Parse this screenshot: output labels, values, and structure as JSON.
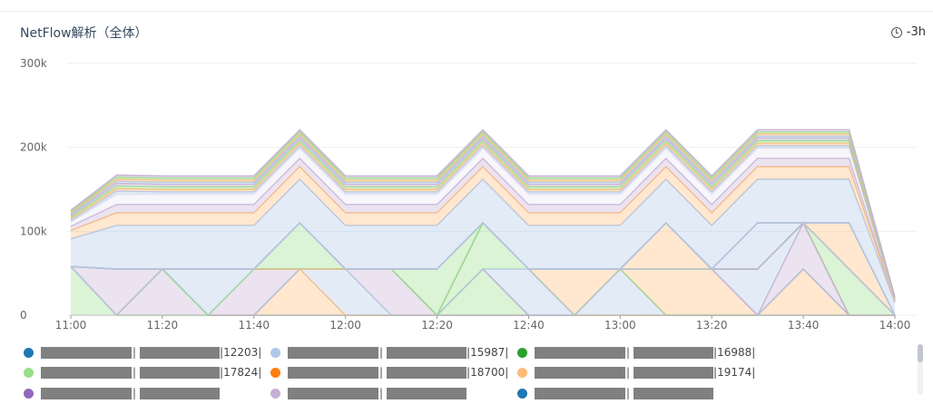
{
  "panel": {
    "title": "NetFlow解析（全体）",
    "time_range": "-3h",
    "icon": "clock-icon"
  },
  "legend": {
    "items": [
      {
        "id": "12203",
        "suffix": "|12203|",
        "color": "#1f77b4"
      },
      {
        "id": "15987",
        "suffix": "|15987|",
        "color": "#aec7e8"
      },
      {
        "id": "16988",
        "suffix": "|16988|",
        "color": "#2ca02c"
      },
      {
        "id": "17824",
        "suffix": "|17824|",
        "color": "#98df8a"
      },
      {
        "id": "18700",
        "suffix": "|18700|",
        "color": "#ff7f0e"
      },
      {
        "id": "19174",
        "suffix": "|19174|",
        "color": "#ffbb78"
      },
      {
        "id": "row3a",
        "suffix": "",
        "color": "#9467bd"
      },
      {
        "id": "row3b",
        "suffix": "",
        "color": "#c5b0d5"
      },
      {
        "id": "row3c",
        "suffix": "",
        "color": "#1f77b4"
      }
    ]
  },
  "chart_data": {
    "type": "area",
    "stacked": true,
    "x": [
      "11:00",
      "11:10",
      "11:20",
      "11:30",
      "11:40",
      "11:50",
      "12:00",
      "12:10",
      "12:20",
      "12:30",
      "12:40",
      "12:50",
      "13:00",
      "13:10",
      "13:20",
      "13:30",
      "13:40",
      "13:50",
      "14:00"
    ],
    "xticks": [
      "11:00",
      "11:20",
      "11:40",
      "12:00",
      "12:20",
      "12:40",
      "13:00",
      "13:20",
      "13:40",
      "14:00"
    ],
    "yticks": [
      "0",
      "100k",
      "200k",
      "300k"
    ],
    "ylim": [
      0,
      300000
    ],
    "grid": true,
    "legend_position": "bottom",
    "series": [
      {
        "color": "#98df8a",
        "values": [
          58000,
          0,
          0,
          0,
          0,
          0,
          0,
          0,
          0,
          0,
          0,
          0,
          0,
          0,
          0,
          0,
          0,
          0,
          0
        ]
      },
      {
        "color": "#c5b0d5",
        "values": [
          0,
          0,
          55000,
          0,
          0,
          0,
          0,
          0,
          0,
          0,
          0,
          0,
          0,
          0,
          0,
          0,
          0,
          0,
          0
        ]
      },
      {
        "color": "#ffbb78",
        "values": [
          0,
          0,
          0,
          0,
          0,
          55000,
          0,
          0,
          0,
          0,
          0,
          0,
          0,
          0,
          0,
          0,
          55000,
          0,
          0
        ]
      },
      {
        "color": "#aec7e8",
        "values": [
          0,
          0,
          0,
          0,
          0,
          0,
          55000,
          0,
          0,
          0,
          0,
          0,
          55000,
          0,
          0,
          0,
          0,
          0,
          0
        ]
      },
      {
        "color": "#c5b0d5",
        "values": [
          0,
          0,
          0,
          0,
          0,
          0,
          0,
          55000,
          0,
          0,
          0,
          0,
          0,
          0,
          0,
          0,
          0,
          0,
          0
        ]
      },
      {
        "color": "#98df8a",
        "values": [
          0,
          0,
          0,
          0,
          0,
          0,
          0,
          0,
          0,
          55000,
          0,
          0,
          0,
          0,
          0,
          0,
          0,
          0,
          0
        ]
      },
      {
        "color": "#ffbb78",
        "values": [
          0,
          0,
          0,
          0,
          0,
          0,
          0,
          0,
          0,
          0,
          0,
          0,
          0,
          55000,
          55000,
          0,
          0,
          0,
          0
        ]
      },
      {
        "color": "#aec7e8",
        "values": [
          0,
          0,
          0,
          0,
          0,
          0,
          0,
          0,
          0,
          0,
          0,
          0,
          0,
          0,
          0,
          0,
          0,
          0,
          0
        ]
      },
      {
        "color": "#c5b0d5",
        "values": [
          0,
          55000,
          0,
          0,
          55000,
          0,
          0,
          0,
          0,
          0,
          0,
          0,
          0,
          0,
          0,
          0,
          55000,
          0,
          0
        ]
      },
      {
        "color": "#aec7e8",
        "values": [
          0,
          0,
          0,
          0,
          0,
          0,
          0,
          0,
          0,
          0,
          55000,
          0,
          0,
          0,
          0,
          55000,
          0,
          0,
          0
        ]
      },
      {
        "color": "#98df8a",
        "values": [
          0,
          0,
          0,
          0,
          0,
          0,
          0,
          0,
          0,
          55000,
          0,
          0,
          0,
          0,
          0,
          0,
          0,
          0,
          0
        ]
      },
      {
        "color": "#aec7e8",
        "values": [
          0,
          0,
          0,
          55000,
          0,
          0,
          0,
          0,
          0,
          0,
          0,
          0,
          0,
          0,
          0,
          0,
          0,
          0,
          0
        ]
      },
      {
        "color": "#ffbb78",
        "values": [
          0,
          0,
          0,
          0,
          0,
          0,
          0,
          0,
          0,
          0,
          0,
          0,
          0,
          55000,
          0,
          0,
          0,
          0,
          0
        ]
      },
      {
        "color": "#c5b0d5",
        "values": [
          0,
          0,
          0,
          0,
          0,
          0,
          0,
          0,
          0,
          0,
          0,
          0,
          0,
          0,
          0,
          0,
          0,
          0,
          0
        ]
      },
      {
        "color": "#98df8a",
        "values": [
          0,
          0,
          0,
          0,
          0,
          0,
          0,
          0,
          0,
          0,
          0,
          0,
          0,
          0,
          0,
          0,
          0,
          55000,
          0
        ]
      },
      {
        "color": "#98df8a",
        "values": [
          0,
          0,
          0,
          0,
          0,
          0,
          0,
          0,
          55000,
          0,
          0,
          0,
          0,
          0,
          0,
          0,
          0,
          0,
          0
        ]
      },
      {
        "color": "#aec7e8",
        "values": [
          0,
          0,
          0,
          0,
          0,
          0,
          0,
          0,
          0,
          0,
          0,
          0,
          0,
          0,
          0,
          0,
          0,
          0,
          0
        ]
      },
      {
        "color": "#ffbb78",
        "values": [
          0,
          0,
          0,
          0,
          0,
          0,
          0,
          0,
          0,
          0,
          0,
          55000,
          0,
          0,
          0,
          0,
          0,
          0,
          0
        ]
      },
      {
        "color": "#98df8a",
        "values": [
          0,
          0,
          0,
          0,
          0,
          55000,
          0,
          0,
          0,
          0,
          0,
          0,
          0,
          0,
          0,
          0,
          0,
          0,
          0
        ]
      },
      {
        "color": "#c5b0d5",
        "values": [
          0,
          0,
          0,
          0,
          0,
          0,
          0,
          0,
          0,
          0,
          0,
          0,
          0,
          0,
          0,
          0,
          0,
          0,
          0
        ]
      },
      {
        "color": "#aec7e8",
        "values": [
          0,
          0,
          0,
          0,
          0,
          0,
          0,
          0,
          0,
          0,
          0,
          0,
          0,
          0,
          0,
          55000,
          0,
          0,
          0
        ]
      },
      {
        "color": "#ffbb78",
        "values": [
          0,
          0,
          0,
          0,
          0,
          0,
          0,
          0,
          0,
          0,
          0,
          0,
          0,
          0,
          0,
          0,
          0,
          55000,
          0
        ]
      },
      {
        "color": "#c5b0d5",
        "values": [
          0,
          0,
          0,
          0,
          0,
          0,
          0,
          0,
          0,
          0,
          0,
          0,
          0,
          0,
          0,
          0,
          0,
          0,
          0
        ]
      },
      {
        "color": "#98df8a",
        "values": [
          0,
          0,
          0,
          0,
          0,
          0,
          0,
          0,
          0,
          0,
          0,
          0,
          0,
          0,
          0,
          0,
          0,
          0,
          0
        ]
      },
      {
        "color": "#ffbb78",
        "values": [
          0,
          0,
          0,
          0,
          0,
          0,
          0,
          0,
          0,
          0,
          0,
          0,
          0,
          0,
          0,
          0,
          0,
          0,
          0
        ]
      },
      {
        "color": "#c5b0d5",
        "values": [
          0,
          0,
          0,
          0,
          0,
          0,
          0,
          0,
          0,
          0,
          0,
          0,
          0,
          0,
          0,
          0,
          0,
          0,
          0
        ]
      },
      {
        "color": "#aec7e8",
        "values": [
          0,
          0,
          0,
          0,
          0,
          0,
          0,
          0,
          0,
          0,
          0,
          0,
          0,
          0,
          0,
          0,
          0,
          0,
          0
        ]
      },
      {
        "color": "#aec7e8",
        "values": [
          33000,
          52000,
          52000,
          52000,
          52000,
          52000,
          52000,
          52000,
          52000,
          52000,
          52000,
          52000,
          52000,
          52000,
          52000,
          52000,
          52000,
          52000,
          15000
        ]
      },
      {
        "color": "#ffbb78",
        "values": [
          10000,
          15000,
          15000,
          15000,
          15000,
          15000,
          15000,
          15000,
          15000,
          15000,
          15000,
          15000,
          15000,
          15000,
          15000,
          15000,
          15000,
          15000,
          1000
        ]
      },
      {
        "color": "#c5b0d5",
        "values": [
          5000,
          10000,
          10000,
          10000,
          10000,
          10000,
          10000,
          10000,
          10000,
          10000,
          10000,
          10000,
          10000,
          10000,
          10000,
          10000,
          10000,
          10000,
          1000
        ]
      },
      {
        "color": "#e9e4f2",
        "values": [
          5000,
          12000,
          12000,
          12000,
          12000,
          12000,
          12000,
          12000,
          12000,
          12000,
          12000,
          12000,
          12000,
          12000,
          12000,
          12000,
          12000,
          12000,
          1000
        ]
      },
      {
        "color": "#aec7e8",
        "values": [
          2000,
          4000,
          3000,
          3000,
          3000,
          3000,
          3000,
          3000,
          3000,
          3000,
          3000,
          3000,
          3000,
          3000,
          3000,
          3000,
          3000,
          3000,
          500
        ]
      },
      {
        "color": "#ffbb78",
        "values": [
          2000,
          3000,
          3000,
          3000,
          3000,
          3000,
          3000,
          3000,
          3000,
          3000,
          3000,
          3000,
          3000,
          3000,
          3000,
          3000,
          3000,
          3000,
          500
        ]
      },
      {
        "color": "#98df8a",
        "values": [
          2000,
          3000,
          3000,
          3000,
          3000,
          3000,
          3000,
          3000,
          3000,
          3000,
          3000,
          3000,
          3000,
          3000,
          3000,
          3000,
          3000,
          3000,
          500
        ]
      },
      {
        "color": "#c5b0d5",
        "values": [
          2000,
          3000,
          3000,
          3000,
          3000,
          3000,
          3000,
          3000,
          3000,
          3000,
          3000,
          3000,
          3000,
          3000,
          3000,
          3000,
          3000,
          3000,
          500
        ]
      },
      {
        "color": "#aec7e8",
        "values": [
          1500,
          2500,
          2500,
          2500,
          2500,
          2500,
          2500,
          2500,
          2500,
          2500,
          2500,
          2500,
          2500,
          2500,
          2500,
          2500,
          2500,
          2500,
          500
        ]
      },
      {
        "color": "#ffbb78",
        "values": [
          1500,
          2500,
          2500,
          2500,
          2500,
          2500,
          2500,
          2500,
          2500,
          2500,
          2500,
          2500,
          2500,
          2500,
          2500,
          2500,
          2500,
          2500,
          500
        ]
      },
      {
        "color": "#98df8a",
        "values": [
          1500,
          2500,
          2500,
          2500,
          2500,
          2500,
          2500,
          2500,
          2500,
          2500,
          2500,
          2500,
          2500,
          2500,
          2500,
          2500,
          2500,
          2500,
          500
        ]
      },
      {
        "color": "#c5b0d5",
        "values": [
          1500,
          2500,
          2500,
          2500,
          2500,
          2500,
          2500,
          2500,
          2500,
          2500,
          2500,
          2500,
          2500,
          2500,
          2500,
          2500,
          2500,
          2500,
          500
        ]
      }
    ]
  }
}
